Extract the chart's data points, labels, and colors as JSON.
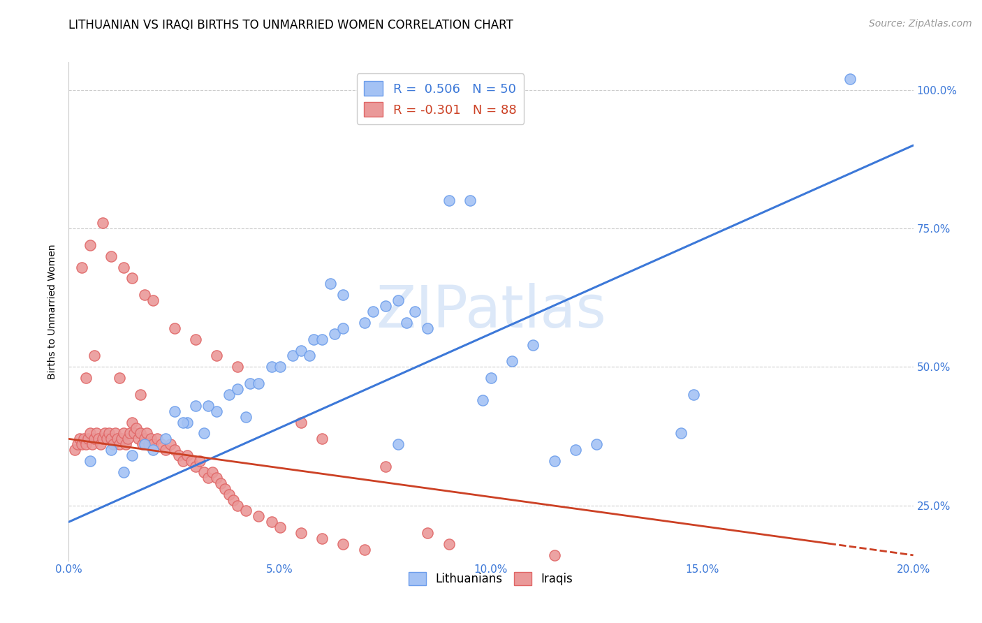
{
  "title": "LITHUANIAN VS IRAQI BIRTHS TO UNMARRIED WOMEN CORRELATION CHART",
  "source": "Source: ZipAtlas.com",
  "ylabel": "Births to Unmarried Women",
  "xlabel": "",
  "xlim": [
    0.0,
    20.0
  ],
  "ylim": [
    15.0,
    105.0
  ],
  "x_tick_vals": [
    0.0,
    5.0,
    10.0,
    15.0,
    20.0
  ],
  "y_tick_vals": [
    25.0,
    50.0,
    75.0,
    100.0
  ],
  "blue_color": "#a4c2f4",
  "blue_edge_color": "#6d9eeb",
  "pink_color": "#ea9999",
  "pink_edge_color": "#e06666",
  "blue_line_color": "#3c78d8",
  "pink_line_color": "#cc4125",
  "tick_color": "#3c78d8",
  "watermark": "ZIPatlas",
  "legend_blue_label": "R =  0.506   N = 50",
  "legend_pink_label": "R = -0.301   N = 88",
  "legend_bottom_blue": "Lithuanians",
  "legend_bottom_pink": "Iraqis",
  "blue_trend_x0": 0.0,
  "blue_trend_y0": 22.0,
  "blue_trend_x1": 20.0,
  "blue_trend_y1": 90.0,
  "pink_trend_x0": 0.0,
  "pink_trend_y0": 37.0,
  "pink_trend_x1": 20.0,
  "pink_trend_y1": 16.0,
  "grid_color": "#cccccc",
  "background_color": "#ffffff",
  "title_fontsize": 12,
  "axis_label_fontsize": 10,
  "tick_fontsize": 11,
  "watermark_fontsize": 60,
  "watermark_color": "#dce8f8",
  "source_fontsize": 10,
  "blue_x": [
    0.5,
    1.0,
    1.3,
    1.5,
    1.8,
    2.0,
    2.3,
    2.5,
    2.8,
    3.0,
    3.2,
    3.5,
    3.8,
    4.0,
    4.3,
    4.5,
    4.8,
    5.0,
    5.3,
    5.5,
    5.8,
    6.0,
    6.3,
    6.5,
    7.0,
    7.2,
    7.5,
    7.8,
    8.0,
    8.5,
    9.0,
    9.5,
    10.0,
    10.5,
    11.0,
    11.5,
    12.0,
    12.5,
    6.2,
    9.8,
    14.5,
    14.8,
    18.5,
    6.5,
    7.8,
    3.3,
    4.2,
    5.7,
    2.7,
    8.2
  ],
  "blue_y": [
    33.0,
    35.0,
    31.0,
    34.0,
    36.0,
    35.0,
    37.0,
    42.0,
    40.0,
    43.0,
    38.0,
    42.0,
    45.0,
    46.0,
    47.0,
    47.0,
    50.0,
    50.0,
    52.0,
    53.0,
    55.0,
    55.0,
    56.0,
    57.0,
    58.0,
    60.0,
    61.0,
    62.0,
    58.0,
    57.0,
    80.0,
    80.0,
    48.0,
    51.0,
    54.0,
    33.0,
    35.0,
    36.0,
    65.0,
    44.0,
    38.0,
    45.0,
    102.0,
    63.0,
    36.0,
    43.0,
    41.0,
    52.0,
    40.0,
    60.0
  ],
  "pink_x": [
    0.15,
    0.2,
    0.25,
    0.3,
    0.35,
    0.4,
    0.45,
    0.5,
    0.55,
    0.6,
    0.65,
    0.7,
    0.75,
    0.8,
    0.85,
    0.9,
    0.95,
    1.0,
    1.05,
    1.1,
    1.15,
    1.2,
    1.25,
    1.3,
    1.35,
    1.4,
    1.45,
    1.5,
    1.55,
    1.6,
    1.65,
    1.7,
    1.75,
    1.8,
    1.85,
    1.9,
    1.95,
    2.0,
    2.1,
    2.2,
    2.3,
    2.4,
    2.5,
    2.6,
    2.7,
    2.8,
    2.9,
    3.0,
    3.1,
    3.2,
    3.3,
    3.4,
    3.5,
    3.6,
    3.7,
    3.8,
    3.9,
    4.0,
    4.2,
    4.5,
    4.8,
    5.0,
    5.5,
    6.0,
    6.5,
    7.0,
    8.5,
    9.0,
    0.3,
    0.5,
    0.8,
    1.0,
    1.3,
    1.5,
    1.8,
    2.0,
    2.5,
    3.0,
    3.5,
    4.0,
    5.5,
    6.0,
    7.5,
    11.5,
    0.4,
    0.6,
    1.2,
    1.7
  ],
  "pink_y": [
    35.0,
    36.0,
    37.0,
    36.0,
    37.0,
    36.0,
    37.0,
    38.0,
    36.0,
    37.0,
    38.0,
    37.0,
    36.0,
    37.0,
    38.0,
    37.0,
    38.0,
    37.0,
    36.0,
    38.0,
    37.0,
    36.0,
    37.0,
    38.0,
    36.0,
    37.0,
    38.0,
    40.0,
    38.0,
    39.0,
    37.0,
    38.0,
    36.0,
    37.0,
    38.0,
    36.0,
    37.0,
    36.0,
    37.0,
    36.0,
    35.0,
    36.0,
    35.0,
    34.0,
    33.0,
    34.0,
    33.0,
    32.0,
    33.0,
    31.0,
    30.0,
    31.0,
    30.0,
    29.0,
    28.0,
    27.0,
    26.0,
    25.0,
    24.0,
    23.0,
    22.0,
    21.0,
    20.0,
    19.0,
    18.0,
    17.0,
    20.0,
    18.0,
    68.0,
    72.0,
    76.0,
    70.0,
    68.0,
    66.0,
    63.0,
    62.0,
    57.0,
    55.0,
    52.0,
    50.0,
    40.0,
    37.0,
    32.0,
    16.0,
    48.0,
    52.0,
    48.0,
    45.0
  ]
}
